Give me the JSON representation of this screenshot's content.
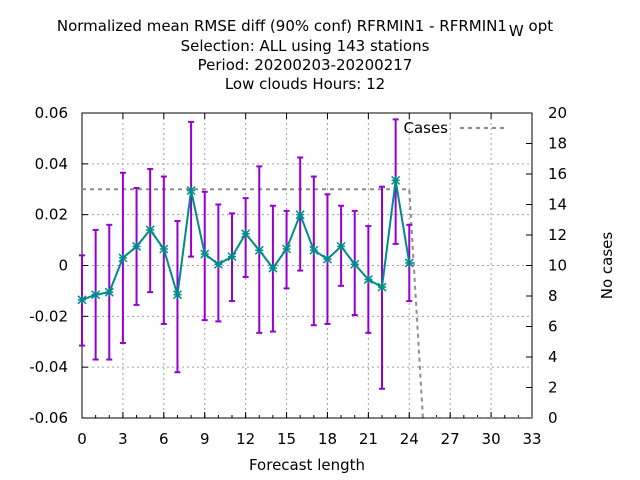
{
  "chart_data": {
    "type": "line",
    "title_lines": [
      "Normalized mean RMSE diff (90% conf) RFRMIN1 - RFRMIN1",
      "Selection: ALL using   143 stations",
      "Period: 20200203-20200217",
      "Low clouds   Hours:  12"
    ],
    "title_subscript": "W",
    "title_suffix": "opt",
    "xlabel": "Forecast length",
    "ylabel": "",
    "y2label": "No cases",
    "xlim": [
      0,
      33
    ],
    "ylim": [
      -0.06,
      0.06
    ],
    "y2lim": [
      0,
      20
    ],
    "x_ticks": [
      "0",
      "3",
      "6",
      "9",
      "12",
      "15",
      "18",
      "21",
      "24",
      "27",
      "30",
      "33"
    ],
    "y_ticks": [
      "-0.06",
      "-0.04",
      "-0.02",
      "0",
      "0.02",
      "0.04",
      "0.06"
    ],
    "y2_ticks": [
      "0",
      "2",
      "4",
      "6",
      "8",
      "10",
      "12",
      "14",
      "16",
      "18",
      "20"
    ],
    "grid": true,
    "legend_position": "top-right",
    "series": [
      {
        "name": "",
        "axis": "left",
        "color": "#008b8b",
        "errorbar_color": "#9400d3",
        "x": [
          0,
          1,
          2,
          3,
          4,
          5,
          6,
          7,
          8,
          9,
          10,
          11,
          12,
          13,
          14,
          15,
          16,
          17,
          18,
          19,
          20,
          21,
          22,
          23,
          24
        ],
        "y": [
          -0.0135,
          -0.0115,
          -0.0105,
          0.003,
          0.0075,
          0.014,
          0.0065,
          -0.0115,
          0.0295,
          0.0045,
          0.0005,
          0.0035,
          0.0125,
          0.006,
          -0.001,
          0.0065,
          0.02,
          0.006,
          0.0025,
          0.0075,
          0.0005,
          -0.0055,
          -0.0085,
          0.0335,
          0.001
        ],
        "err_low": [
          -0.0315,
          -0.037,
          -0.037,
          -0.0305,
          -0.0155,
          -0.0105,
          -0.023,
          -0.042,
          0.0035,
          -0.0215,
          -0.022,
          -0.014,
          -0.0045,
          -0.0265,
          -0.026,
          -0.009,
          -0.002,
          -0.0235,
          -0.023,
          -0.008,
          -0.0195,
          -0.0265,
          -0.0485,
          0.0085,
          -0.014
        ],
        "err_high": [
          0.004,
          0.014,
          0.016,
          0.0365,
          0.0305,
          0.038,
          0.035,
          0.0175,
          0.0565,
          0.029,
          0.024,
          0.0205,
          0.0265,
          0.039,
          0.0235,
          0.0215,
          0.0425,
          0.035,
          0.028,
          0.0235,
          0.0215,
          0.0155,
          0.031,
          0.0575,
          0.016
        ]
      },
      {
        "name": "Cases",
        "axis": "right",
        "color": "#8c8c8c",
        "dash": true,
        "x": [
          0,
          1,
          2,
          3,
          4,
          5,
          6,
          7,
          8,
          9,
          10,
          11,
          12,
          13,
          14,
          15,
          16,
          17,
          18,
          19,
          20,
          21,
          22,
          23,
          24,
          25,
          26,
          27,
          28,
          29,
          30,
          31,
          32,
          33
        ],
        "y": [
          15,
          15,
          15,
          15,
          15,
          15,
          15,
          15,
          15,
          15,
          15,
          15,
          15,
          15,
          15,
          15,
          15,
          15,
          15,
          15,
          15,
          15,
          15,
          15,
          15,
          0,
          0,
          0,
          0,
          0,
          0,
          0,
          0,
          0
        ]
      }
    ]
  }
}
